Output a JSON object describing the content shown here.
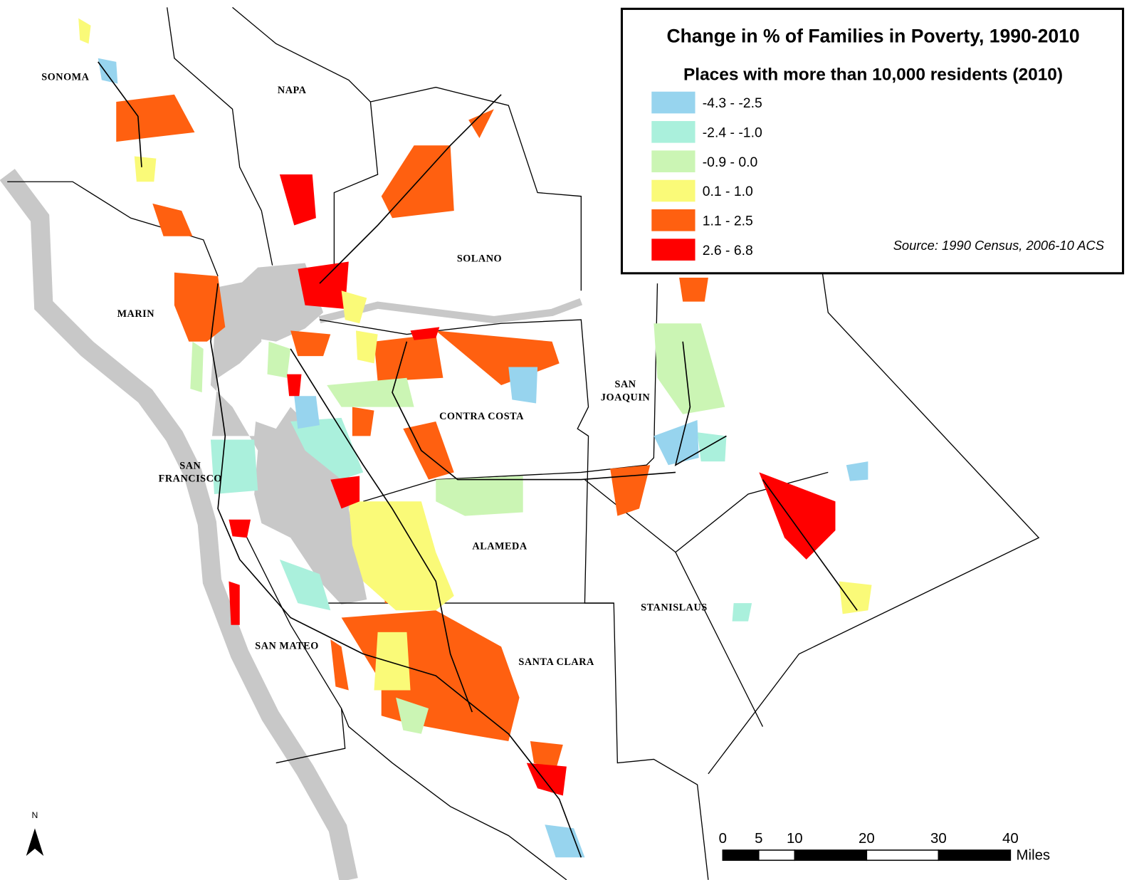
{
  "legend": {
    "title": "Change in % of Families in Poverty, 1990-2010",
    "subtitle": "Places with more than 10,000 residents (2010)",
    "items": [
      {
        "label": "-4.3 - -2.5",
        "color": "#97d4ee"
      },
      {
        "label": "-2.4 - -1.0",
        "color": "#aaf0dc"
      },
      {
        "label": "-0.9 - 0.0",
        "color": "#cbf5b4"
      },
      {
        "label": "0.1 - 1.0",
        "color": "#fafa78"
      },
      {
        "label": "1.1 - 2.5",
        "color": "#ff6010"
      },
      {
        "label": "2.6 - 6.8",
        "color": "#ff0000"
      }
    ],
    "source": "Source: 1990 Census, 2006-10 ACS"
  },
  "counties": [
    "SONOMA",
    "NAPA",
    "SOLANO",
    "MARIN",
    "CONTRA COSTA",
    "SAN JOAQUIN",
    "SAN FRANCISCO",
    "ALAMEDA",
    "STANISLAUS",
    "SAN MATEO",
    "SANTA CLARA"
  ],
  "scale_bar": {
    "ticks": [
      0,
      5,
      10,
      20,
      30,
      40
    ],
    "unit": "Miles"
  },
  "north": "N"
}
